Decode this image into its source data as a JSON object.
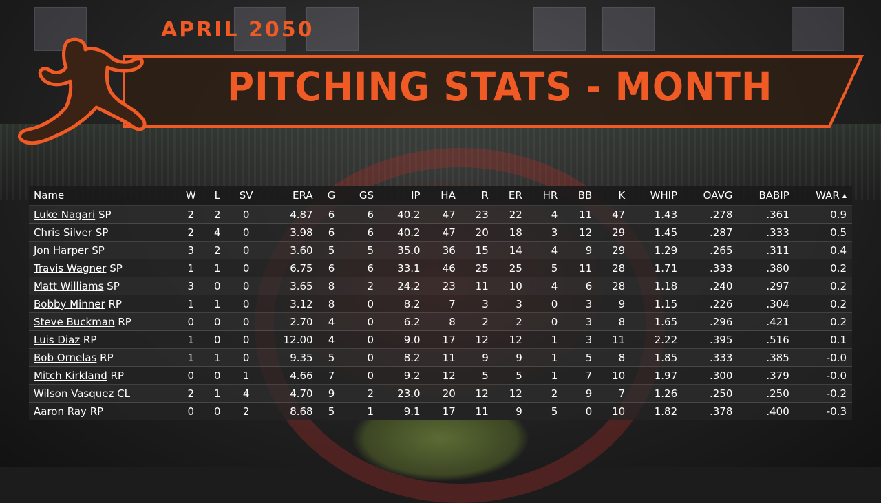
{
  "header": {
    "month": "APRIL 2050",
    "title": "PITCHING STATS - MONTH"
  },
  "colors": {
    "accent": "#f05a24",
    "banner_fill": "#2d1e14",
    "silhouette": "#3a2315"
  },
  "icons": {
    "pitcher": "pitcher-silhouette-icon",
    "sort": "sort-asc-icon"
  },
  "table": {
    "columns": [
      "Name",
      "W",
      "L",
      "SV",
      "ERA",
      "G",
      "GS",
      "IP",
      "HA",
      "R",
      "ER",
      "HR",
      "BB",
      "K",
      "WHIP",
      "OAVG",
      "BABIP",
      "WAR"
    ],
    "sort_column": "WAR",
    "rows": [
      {
        "name": "Luke Nagari",
        "pos": "SP",
        "W": "2",
        "L": "2",
        "SV": "0",
        "ERA": "4.87",
        "G": "6",
        "GS": "6",
        "IP": "40.2",
        "HA": "47",
        "R": "23",
        "ER": "22",
        "HR": "4",
        "BB": "11",
        "K": "47",
        "WHIP": "1.43",
        "OAVG": ".278",
        "BABIP": ".361",
        "WAR": "0.9"
      },
      {
        "name": "Chris Silver",
        "pos": "SP",
        "W": "2",
        "L": "4",
        "SV": "0",
        "ERA": "3.98",
        "G": "6",
        "GS": "6",
        "IP": "40.2",
        "HA": "47",
        "R": "20",
        "ER": "18",
        "HR": "3",
        "BB": "12",
        "K": "29",
        "WHIP": "1.45",
        "OAVG": ".287",
        "BABIP": ".333",
        "WAR": "0.5"
      },
      {
        "name": "Jon Harper",
        "pos": "SP",
        "W": "3",
        "L": "2",
        "SV": "0",
        "ERA": "3.60",
        "G": "5",
        "GS": "5",
        "IP": "35.0",
        "HA": "36",
        "R": "15",
        "ER": "14",
        "HR": "4",
        "BB": "9",
        "K": "29",
        "WHIP": "1.29",
        "OAVG": ".265",
        "BABIP": ".311",
        "WAR": "0.4"
      },
      {
        "name": "Travis Wagner",
        "pos": "SP",
        "W": "1",
        "L": "1",
        "SV": "0",
        "ERA": "6.75",
        "G": "6",
        "GS": "6",
        "IP": "33.1",
        "HA": "46",
        "R": "25",
        "ER": "25",
        "HR": "5",
        "BB": "11",
        "K": "28",
        "WHIP": "1.71",
        "OAVG": ".333",
        "BABIP": ".380",
        "WAR": "0.2"
      },
      {
        "name": "Matt Williams",
        "pos": "SP",
        "W": "3",
        "L": "0",
        "SV": "0",
        "ERA": "3.65",
        "G": "8",
        "GS": "2",
        "IP": "24.2",
        "HA": "23",
        "R": "11",
        "ER": "10",
        "HR": "4",
        "BB": "6",
        "K": "28",
        "WHIP": "1.18",
        "OAVG": ".240",
        "BABIP": ".297",
        "WAR": "0.2"
      },
      {
        "name": "Bobby Minner",
        "pos": "RP",
        "W": "1",
        "L": "1",
        "SV": "0",
        "ERA": "3.12",
        "G": "8",
        "GS": "0",
        "IP": "8.2",
        "HA": "7",
        "R": "3",
        "ER": "3",
        "HR": "0",
        "BB": "3",
        "K": "9",
        "WHIP": "1.15",
        "OAVG": ".226",
        "BABIP": ".304",
        "WAR": "0.2"
      },
      {
        "name": "Steve Buckman",
        "pos": "RP",
        "W": "0",
        "L": "0",
        "SV": "0",
        "ERA": "2.70",
        "G": "4",
        "GS": "0",
        "IP": "6.2",
        "HA": "8",
        "R": "2",
        "ER": "2",
        "HR": "0",
        "BB": "3",
        "K": "8",
        "WHIP": "1.65",
        "OAVG": ".296",
        "BABIP": ".421",
        "WAR": "0.2"
      },
      {
        "name": "Luis Diaz",
        "pos": "RP",
        "W": "1",
        "L": "0",
        "SV": "0",
        "ERA": "12.00",
        "G": "4",
        "GS": "0",
        "IP": "9.0",
        "HA": "17",
        "R": "12",
        "ER": "12",
        "HR": "1",
        "BB": "3",
        "K": "11",
        "WHIP": "2.22",
        "OAVG": ".395",
        "BABIP": ".516",
        "WAR": "0.1"
      },
      {
        "name": "Bob Ornelas",
        "pos": "RP",
        "W": "1",
        "L": "1",
        "SV": "0",
        "ERA": "9.35",
        "G": "5",
        "GS": "0",
        "IP": "8.2",
        "HA": "11",
        "R": "9",
        "ER": "9",
        "HR": "1",
        "BB": "5",
        "K": "8",
        "WHIP": "1.85",
        "OAVG": ".333",
        "BABIP": ".385",
        "WAR": "-0.0"
      },
      {
        "name": "Mitch Kirkland",
        "pos": "RP",
        "W": "0",
        "L": "0",
        "SV": "1",
        "ERA": "4.66",
        "G": "7",
        "GS": "0",
        "IP": "9.2",
        "HA": "12",
        "R": "5",
        "ER": "5",
        "HR": "1",
        "BB": "7",
        "K": "10",
        "WHIP": "1.97",
        "OAVG": ".300",
        "BABIP": ".379",
        "WAR": "-0.0"
      },
      {
        "name": "Wilson Vasquez",
        "pos": "CL",
        "W": "2",
        "L": "1",
        "SV": "4",
        "ERA": "4.70",
        "G": "9",
        "GS": "2",
        "IP": "23.0",
        "HA": "20",
        "R": "12",
        "ER": "12",
        "HR": "2",
        "BB": "9",
        "K": "7",
        "WHIP": "1.26",
        "OAVG": ".250",
        "BABIP": ".250",
        "WAR": "-0.2"
      },
      {
        "name": "Aaron Ray",
        "pos": "RP",
        "W": "0",
        "L": "0",
        "SV": "2",
        "ERA": "8.68",
        "G": "5",
        "GS": "1",
        "IP": "9.1",
        "HA": "17",
        "R": "11",
        "ER": "9",
        "HR": "5",
        "BB": "0",
        "K": "10",
        "WHIP": "1.82",
        "OAVG": ".378",
        "BABIP": ".400",
        "WAR": "-0.3"
      }
    ]
  }
}
